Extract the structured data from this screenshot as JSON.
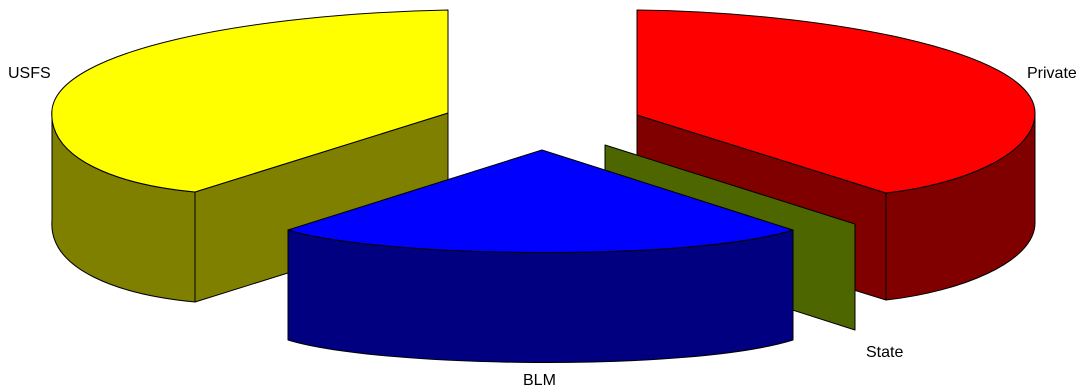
{
  "chart_data": {
    "type": "pie",
    "style": "3d-exploded",
    "title": "",
    "legend": "none",
    "categories": [
      "USFS",
      "Private",
      "State",
      "BLM"
    ],
    "values": [
      39,
      36,
      6,
      19
    ],
    "unit": "percent (estimated from slice angles)",
    "series": [
      {
        "values": [
          39,
          36,
          6,
          19
        ],
        "colors": [
          "#ffff00",
          "#ff0000",
          "#4d6600",
          "#0000ff"
        ]
      }
    ],
    "labels": {
      "usfs": "USFS",
      "private": "Private",
      "state": "State",
      "blm": "BLM"
    }
  }
}
